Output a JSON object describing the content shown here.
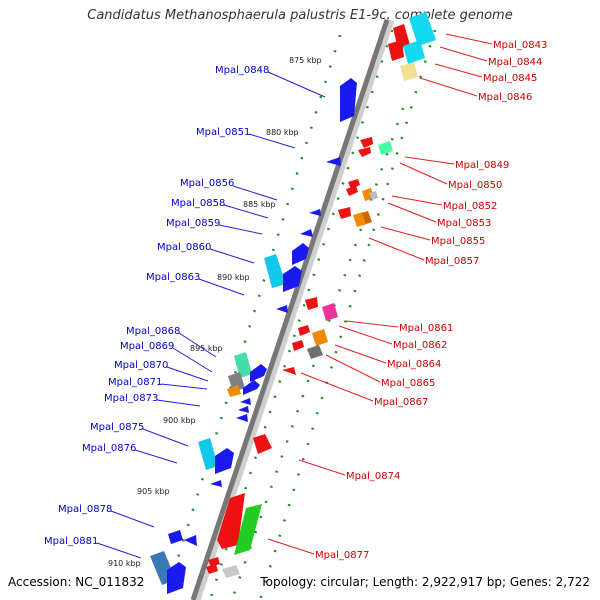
{
  "title": "Candidatus Methanosphaerula palustris E1-9c, complete genome",
  "footer": {
    "accession": "Accession: NC_011832",
    "topology": "Topology: circular; Length: 2,922,917 bp; Genes: 2,722"
  },
  "colors": {
    "left_label": "#0000cc",
    "right_label": "#cc0000",
    "backbone": "#777777",
    "tick_dots": "#228b22"
  },
  "scale_labels": [
    "875 kbp",
    "880 kbp",
    "885 kbp",
    "890 kbp",
    "895 kbp",
    "900 kbp",
    "905 kbp",
    "910 kbp"
  ],
  "left_genes": [
    "Mpal_0848",
    "Mpal_0851",
    "Mpal_0856",
    "Mpal_0858",
    "Mpal_0859",
    "Mpal_0860",
    "Mpal_0863",
    "Mpal_0868",
    "Mpal_0869",
    "Mpal_0870",
    "Mpal_0871",
    "Mpal_0873",
    "Mpal_0875",
    "Mpal_0876",
    "Mpal_0878",
    "Mpal_0881"
  ],
  "right_genes": [
    "Mpal_0843",
    "Mpal_0844",
    "Mpal_0845",
    "Mpal_0846",
    "Mpal_0849",
    "Mpal_0850",
    "Mpal_0852",
    "Mpal_0853",
    "Mpal_0855",
    "Mpal_0857",
    "Mpal_0861",
    "Mpal_0862",
    "Mpal_0864",
    "Mpal_0865",
    "Mpal_0867",
    "Mpal_0874",
    "Mpal_0877"
  ]
}
